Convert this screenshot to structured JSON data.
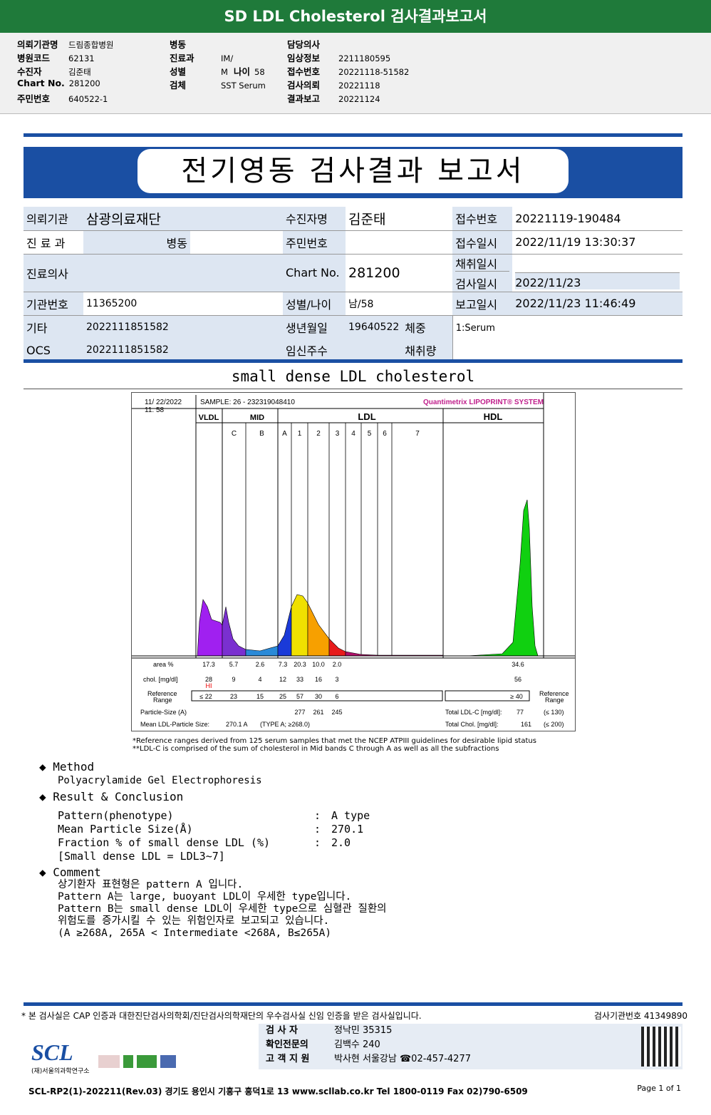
{
  "header": {
    "title": "SD LDL Cholesterol 검사결과보고서"
  },
  "info": {
    "col1": [
      [
        "의뢰기관명",
        "드림종합병원"
      ],
      [
        "병원코드",
        "62131"
      ],
      [
        "수진자",
        "김준태"
      ],
      [
        "Chart No.",
        "281200"
      ],
      [
        "주민번호",
        "640522-1"
      ]
    ],
    "col2": [
      [
        "병동",
        ""
      ],
      [
        "진료과",
        "IM/"
      ],
      [
        "성별",
        "M"
      ],
      [
        "검체",
        "SST Serum"
      ]
    ],
    "age_label": "나이",
    "age": "58",
    "col3": [
      [
        "담당의사",
        ""
      ],
      [
        "임상정보",
        "2211180595"
      ],
      [
        "접수번호",
        "20221118-51582"
      ],
      [
        "검사의뢰",
        "20221118"
      ],
      [
        "결과보고",
        "20221124"
      ]
    ]
  },
  "report": {
    "title": "전기영동 검사결과 보고서",
    "row1": {
      "l1": "의뢰기관",
      "v1": "삼광의료재단",
      "l2": "수진자명",
      "v2": "김준태",
      "l3": "접수번호",
      "v3": "20221119-190484"
    },
    "row2": {
      "l1": "진 료 과",
      "v1": "병동",
      "l2": "주민번호",
      "v2": "",
      "l3": "접수일시",
      "v3": "2022/11/19 13:30:37"
    },
    "row2b": {
      "l3": "채취일시",
      "v3": ""
    },
    "row3": {
      "l1": "진료의사",
      "v1": "",
      "l2": "Chart No.",
      "v2": "281200",
      "l3": "검사일시",
      "v3": "2022/11/23"
    },
    "row4": {
      "l1": "기관번호",
      "v1": "11365200",
      "l2": "성별/나이",
      "v2": "남/58",
      "l3": "보고일시",
      "v3": "2022/11/23 11:46:49"
    },
    "row5": {
      "l1": "기타",
      "v1": "2022111851582",
      "l2": "생년월일",
      "v2": "19640522",
      "l2b": "체중",
      "v3": "1:Serum"
    },
    "row6": {
      "l1": "OCS",
      "v1": "2022111851582",
      "l2": "임신주수",
      "l2b": "채취량"
    }
  },
  "section_title": "small dense LDL cholesterol",
  "chart": {
    "date": "11/ 22/2022",
    "time": "11: 58",
    "sample": "SAMPLE:   26 - 232319048410",
    "brand": "Quantimetrix LIPOPRINT® SYSTEM",
    "groups": [
      "VLDL",
      "MID",
      "LDL",
      "HDL"
    ],
    "bands": [
      "C",
      "B",
      "A",
      "1",
      "2",
      "3",
      "4",
      "5",
      "6",
      "7"
    ],
    "area_label": "area %",
    "area": [
      "17.3",
      "5.7",
      "2.6",
      "7.3",
      "20.3",
      "10.0",
      "2.0",
      "34.6"
    ],
    "chol_label": "chol. [mg/dl]",
    "chol": [
      "28",
      "9",
      "4",
      "12",
      "33",
      "16",
      "3",
      "56"
    ],
    "hi": "HI",
    "ref_label": "Reference Range",
    "ref": [
      "≤ 22",
      "23",
      "15",
      "25",
      "57",
      "30",
      "6"
    ],
    "ref_hdl": "≥ 40",
    "particle_label": "Particle-Size (A)",
    "particle": [
      "277",
      "261",
      "245"
    ],
    "mean_label": "Mean LDL-Particle Size:",
    "mean": "270.1 A",
    "mean_type": "(TYPE A; ≥268.0)",
    "total_ldl_label": "Total LDL-C [mg/dl]:",
    "total_ldl": "77",
    "total_ldl_ref": "(≤ 130)",
    "total_chol_label": "Total Chol. [mg/dl]:",
    "total_chol": "161",
    "total_chol_ref": "(≤ 200)"
  },
  "chart_data": {
    "type": "area",
    "title": "",
    "categories": [
      "VLDL",
      "C",
      "B",
      "A",
      "1",
      "2",
      "3",
      "4-7",
      "HDL"
    ],
    "series": [
      {
        "name": "area %",
        "values": [
          17.3,
          5.7,
          2.6,
          7.3,
          20.3,
          10.0,
          2.0,
          0,
          34.6
        ]
      },
      {
        "name": "chol. [mg/dl]",
        "values": [
          28,
          9,
          4,
          12,
          33,
          16,
          3,
          0,
          56
        ]
      }
    ]
  },
  "footnote": [
    "*Reference ranges derived from 125 serum samples that met the NCEP ATPIII guidelines for desirable lipid status",
    "**LDL-C is comprised of the sum of cholesterol in Mid bands C through A as well as all the subfractions"
  ],
  "method": {
    "title": "Method",
    "text": "Polyacrylamide Gel Electrophoresis"
  },
  "result": {
    "title": "Result & Conclusion",
    "rows": [
      [
        "Pattern(phenotype)",
        ":",
        "A type"
      ],
      [
        "Mean Particle Size(Å)",
        ":",
        "270.1"
      ],
      [
        "Fraction % of small dense LDL (%)",
        ":",
        "2.0"
      ]
    ],
    "note": "[Small dense LDL = LDL3~7]"
  },
  "comment": {
    "title": "Comment",
    "lines": [
      "상기환자 표현형은 pattern A 입니다.",
      "Pattern A는 large, buoyant LDL이 우세한 type입니다.",
      "Pattern B는 small dense LDL이 우세한 type으로 심혈관 질환의",
      "위험도를 증가시킬 수 있는 위험인자로 보고되고 있습니다.",
      "(A ≥268A, 265A < Intermediate <268A, B≤265A)"
    ]
  },
  "footer": {
    "notice": "* 본 검사실은 CAP 인증과 대한진단검사의학회/진단검사의학재단의 우수검사실 신임 인증을 받은 검사실입니다.",
    "org_no": "검사기관번호 41349890",
    "rows": [
      [
        "검 사 자",
        "정낙민 35315"
      ],
      [
        "확인전문의",
        "김백수 240"
      ],
      [
        "고 객 지 원",
        "박사현 서울강남 ☎02-457-4277"
      ]
    ],
    "logo": "SCL",
    "logo_sub": "(재)서울의과학연구소",
    "address": "SCL-RP2(1)-202211(Rev.03)  경기도 용인시 기흥구 흥덕1로 13  www.scllab.co.kr  Tel 1800-0119  Fax 02)790-6509",
    "page": "Page 1 of 1"
  }
}
